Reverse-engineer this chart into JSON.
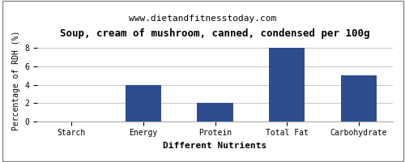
{
  "title": "Soup, cream of mushroom, canned, condensed per 100g",
  "subtitle": "www.dietandfitnesstoday.com",
  "categories": [
    "Starch",
    "Energy",
    "Protein",
    "Total Fat",
    "Carbohydrate"
  ],
  "values": [
    0,
    4,
    2,
    8,
    5
  ],
  "bar_color": "#2d4d8e",
  "ylabel": "Percentage of RDH (%)",
  "xlabel": "Different Nutrients",
  "ylim": [
    0,
    9
  ],
  "yticks": [
    0,
    2,
    4,
    6,
    8
  ],
  "title_fontsize": 9,
  "subtitle_fontsize": 8,
  "tick_fontsize": 7,
  "ylabel_fontsize": 7,
  "xlabel_fontsize": 8,
  "background_color": "#ffffff",
  "grid_color": "#cccccc",
  "border_color": "#aaaaaa"
}
